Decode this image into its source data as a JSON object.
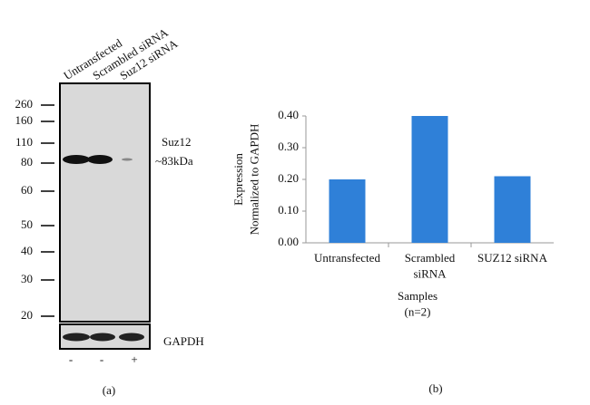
{
  "blot": {
    "lanes": [
      "Untransfected",
      "Scrambled siRNA",
      "Suz12 siRNA"
    ],
    "markers": [
      "260",
      "160",
      "110",
      "80",
      "60",
      "50",
      "40",
      "30",
      "20"
    ],
    "band_label": "Suz12",
    "band_size": "~83kDa",
    "loading_control": "GAPDH",
    "treatment": [
      "-",
      "-",
      "+"
    ],
    "panel": "(a)"
  },
  "chart_data": {
    "type": "bar",
    "panel": "(b)",
    "categories": [
      "Untransfected",
      "Scrambled\nsiRNA",
      "SUZ12 siRNA"
    ],
    "values": [
      0.2,
      0.4,
      0.21
    ],
    "color": "#2f80d8",
    "ylim": [
      0,
      0.4
    ],
    "yticks": [
      {
        "value": 0,
        "label": "0.00"
      },
      {
        "value": 0.1,
        "label": "0.10"
      },
      {
        "value": 0.2,
        "label": "0.20"
      },
      {
        "value": 0.3,
        "label": "0.30"
      },
      {
        "value": 0.4,
        "label": "0.40"
      }
    ],
    "y_label": "Expression\nNormalized to GAPDH",
    "x_label": "Samples\n(n=2)",
    "grid": false
  }
}
